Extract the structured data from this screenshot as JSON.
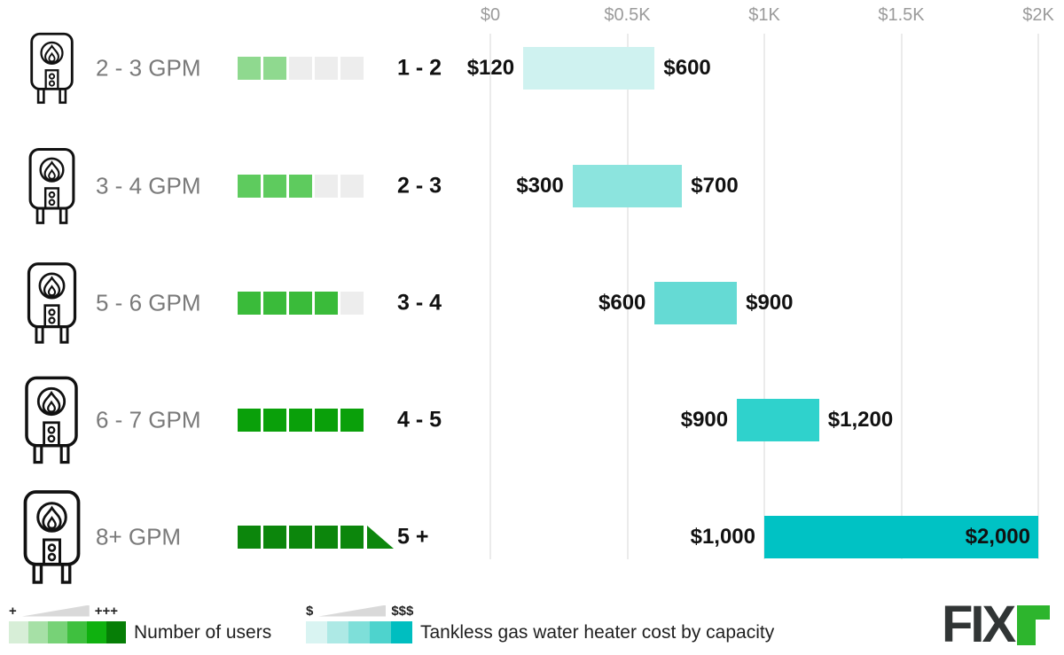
{
  "chart_data": {
    "type": "bar",
    "title": "Tankless gas water heater cost by capacity",
    "x_axis": {
      "min": 0,
      "max": 2000,
      "ticks": [
        {
          "label": "$0",
          "value": 0
        },
        {
          "label": "$0.5K",
          "value": 500
        },
        {
          "label": "$1K",
          "value": 1000
        },
        {
          "label": "$1.5K",
          "value": 1500
        },
        {
          "label": "$2K",
          "value": 2000
        }
      ]
    },
    "empty_square_color": "#ededed",
    "rows": [
      {
        "gpm": "2 - 3 GPM",
        "users": "1 - 2",
        "users_filled": 2,
        "squares_total": 5,
        "square_color": "#8fd98f",
        "cost_min": 120,
        "cost_max": 600,
        "cost_min_label": "$120",
        "cost_max_label": "$600",
        "bar_color": "#cff2f0",
        "max_label_inside": false,
        "plus_triangle": false
      },
      {
        "gpm": "3 - 4 GPM",
        "users": "2 - 3",
        "users_filled": 3,
        "squares_total": 5,
        "square_color": "#5ecb5e",
        "cost_min": 300,
        "cost_max": 700,
        "cost_min_label": "$300",
        "cost_max_label": "$700",
        "bar_color": "#8ce4de",
        "max_label_inside": false,
        "plus_triangle": false
      },
      {
        "gpm": "5 - 6 GPM",
        "users": "3 - 4",
        "users_filled": 4,
        "squares_total": 5,
        "square_color": "#3abb3a",
        "cost_min": 600,
        "cost_max": 900,
        "cost_min_label": "$600",
        "cost_max_label": "$900",
        "bar_color": "#65dad4",
        "max_label_inside": false,
        "plus_triangle": false
      },
      {
        "gpm": "6 - 7 GPM",
        "users": "4 - 5",
        "users_filled": 5,
        "squares_total": 5,
        "square_color": "#0aa00a",
        "cost_min": 900,
        "cost_max": 1200,
        "cost_min_label": "$900",
        "cost_max_label": "$1,200",
        "bar_color": "#2fd2cc",
        "max_label_inside": false,
        "plus_triangle": false
      },
      {
        "gpm": "8+ GPM",
        "users": "5 +",
        "users_filled": 5,
        "squares_total": 5,
        "square_color": "#0c860c",
        "cost_min": 1000,
        "cost_max": 2000,
        "cost_min_label": "$1,000",
        "cost_max_label": "$2,000",
        "bar_color": "#00c2c4",
        "max_label_inside": true,
        "plus_triangle": true
      }
    ]
  },
  "legend_users": {
    "low_symbol": "+",
    "high_symbol": "+++",
    "label": "Number of users",
    "swatches": [
      "#d7eed7",
      "#a6e0a6",
      "#77d277",
      "#3fc03f",
      "#0fb10f",
      "#067e06"
    ]
  },
  "legend_cost": {
    "low_symbol": "$",
    "high_symbol": "$$$",
    "label": "Tankless gas water heater cost by capacity",
    "swatches": [
      "#d9f4f2",
      "#ade9e5",
      "#7edfd9",
      "#4ed3cd",
      "#00bec0"
    ]
  },
  "logo": {
    "text": "FIX",
    "accent_color": "#2db52d"
  }
}
